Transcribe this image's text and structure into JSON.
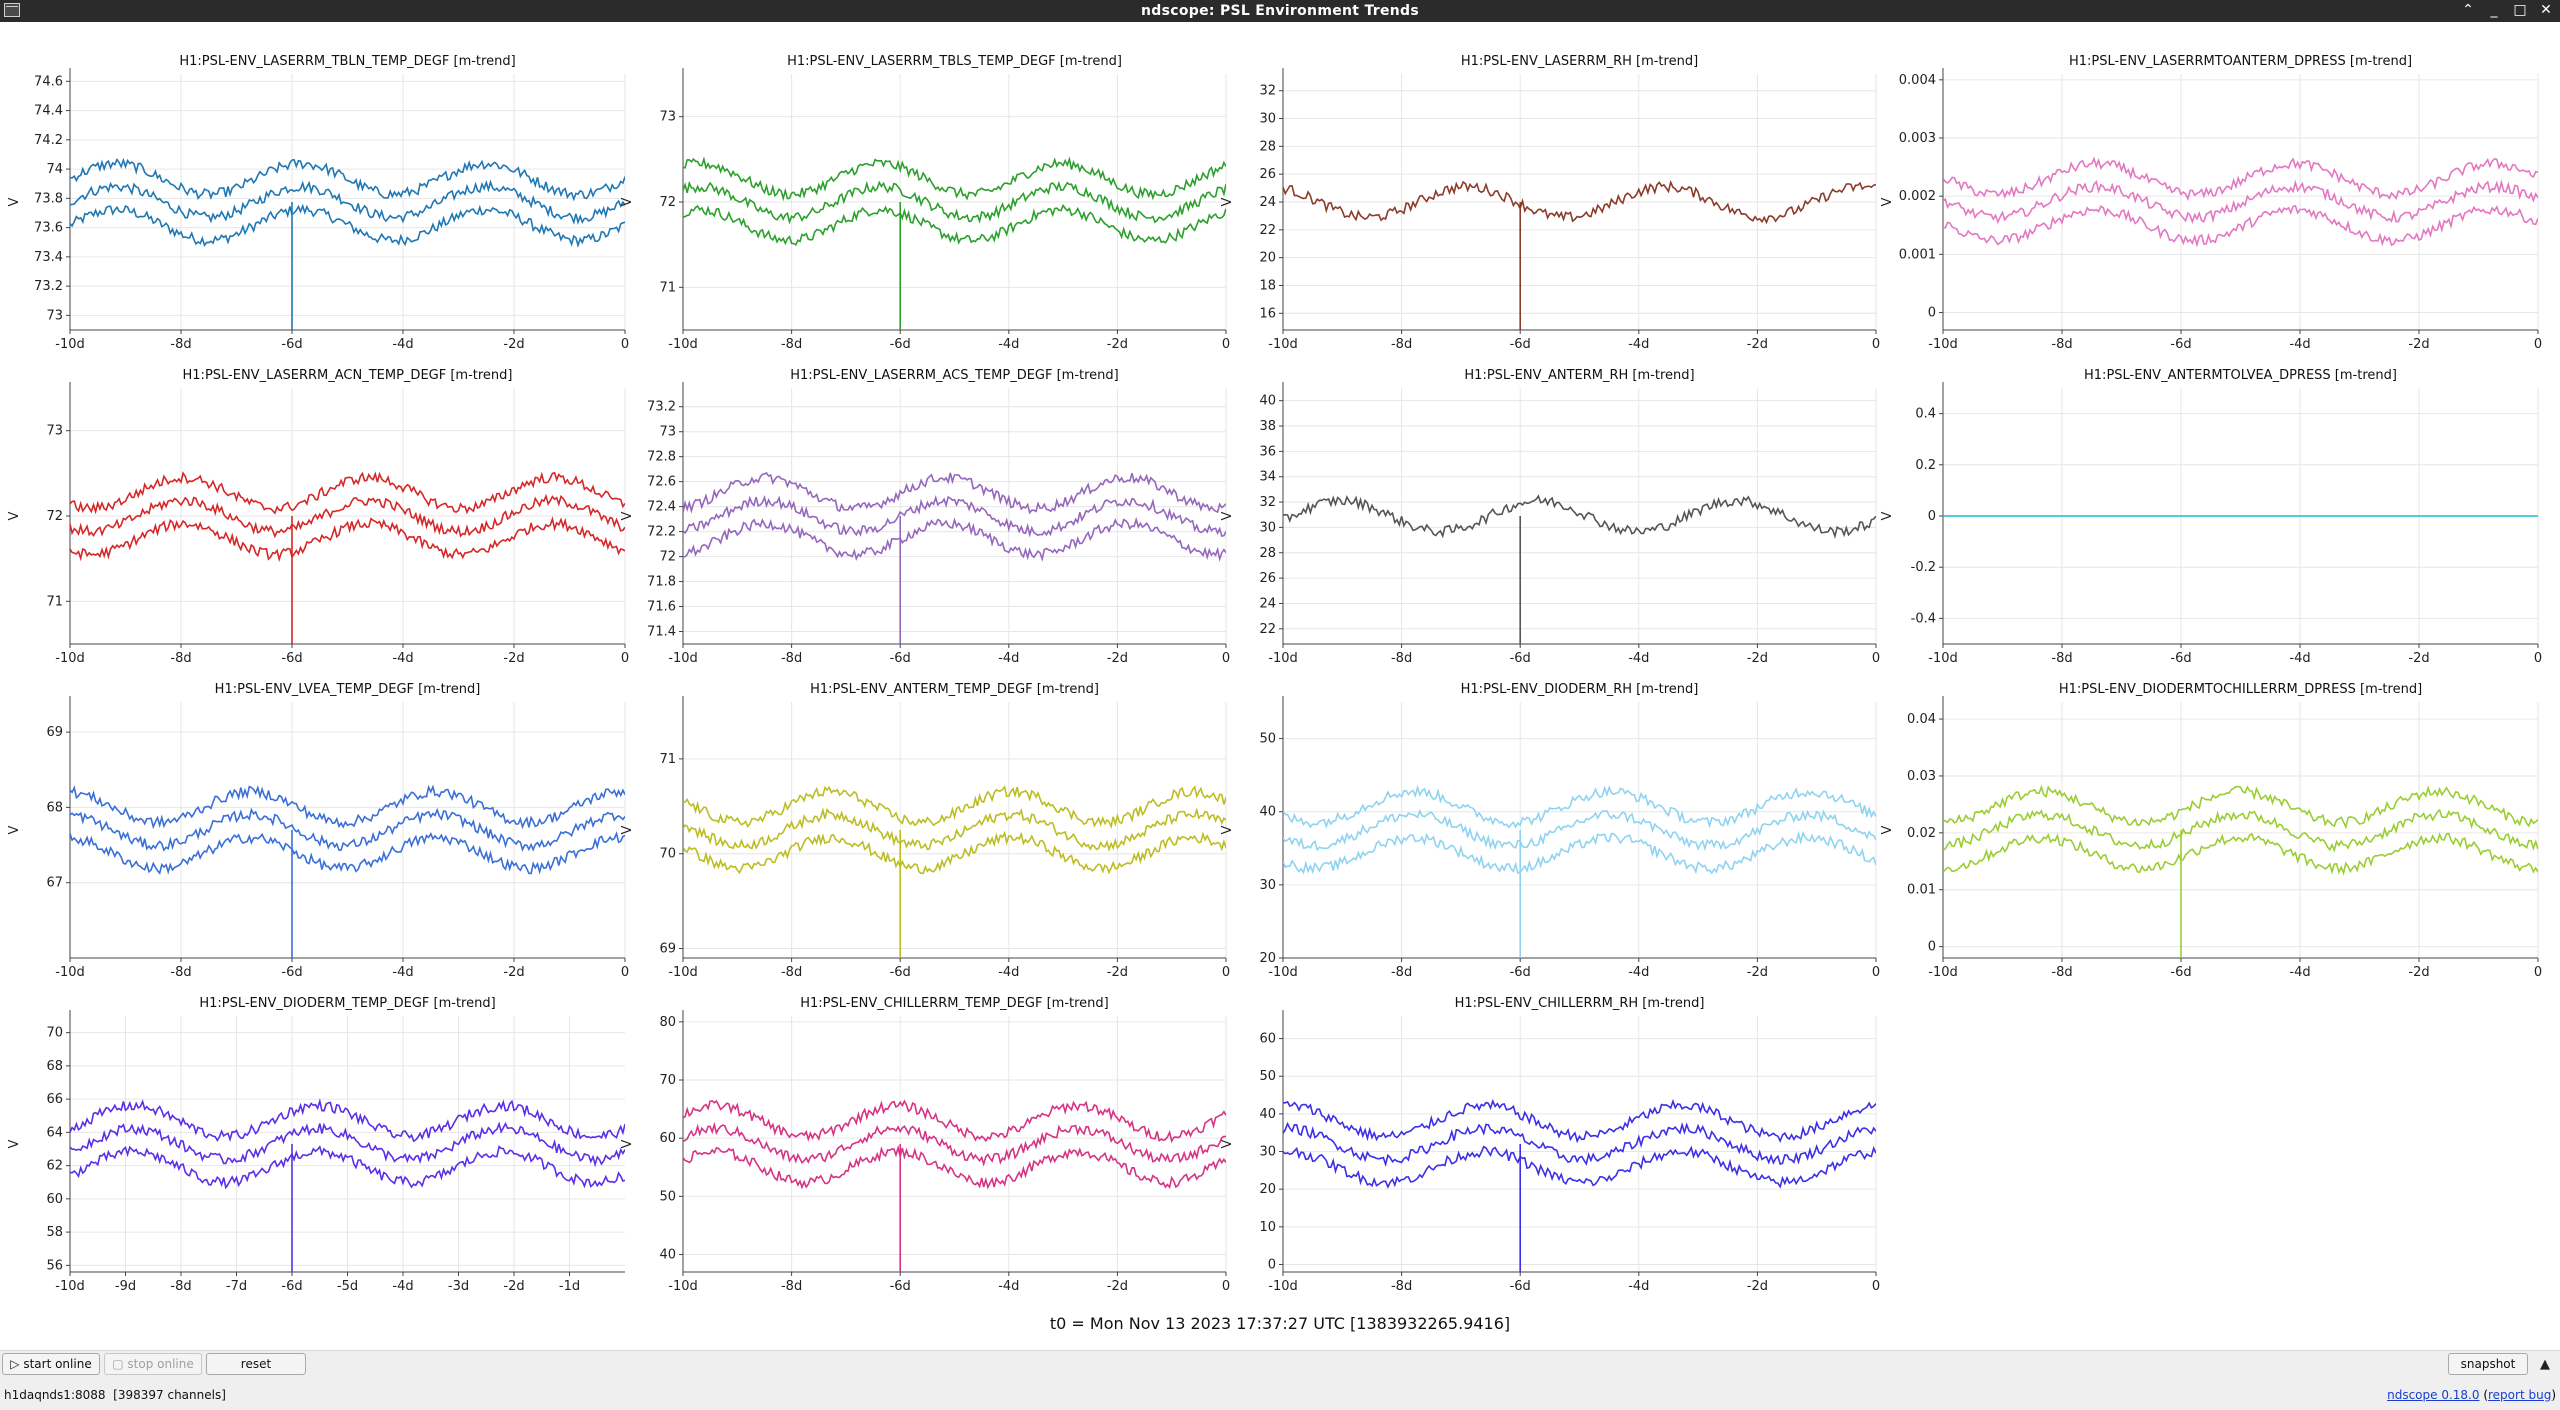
{
  "window": {
    "title": "ndscope: PSL Environment Trends",
    "controls": [
      "⌃",
      "_",
      "□",
      "✕"
    ]
  },
  "time_ticks": [
    "-10d",
    "-8d",
    "-6d",
    "-4d",
    "-2d",
    "0"
  ],
  "time_ticks_dense": [
    "-10d",
    "-9d",
    "-8d",
    "-7d",
    "-6d",
    "-5d",
    "-4d",
    "-3d",
    "-2d",
    "-1d"
  ],
  "plots": [
    {
      "title": "H1:PSL-ENV_LASERRM_TBLN_TEMP_DEGF [m-trend]",
      "ylabel": "V",
      "yticks": [
        "73",
        "73.2",
        "73.4",
        "73.6",
        "73.8",
        "74",
        "74.2",
        "74.4",
        "74.6"
      ],
      "ylim": [
        72.9,
        74.65
      ],
      "color": "#1f77b4"
    },
    {
      "title": "H1:PSL-ENV_LASERRM_TBLS_TEMP_DEGF [m-trend]",
      "ylabel": "V",
      "yticks": [
        "71",
        "72",
        "73"
      ],
      "ylim": [
        70.5,
        73.5
      ],
      "color": "#2ca02c"
    },
    {
      "title": "H1:PSL-ENV_LASERRM_RH [m-trend]",
      "ylabel": "V",
      "yticks": [
        "16",
        "18",
        "20",
        "22",
        "24",
        "26",
        "28",
        "30",
        "32"
      ],
      "ylim": [
        14.8,
        33.2
      ],
      "color": "#8c3b2a"
    },
    {
      "title": "H1:PSL-ENV_LASERRMTOANTERM_DPRESS [m-trend]",
      "ylabel": "V",
      "yticks": [
        "0",
        "0.001",
        "0.002",
        "0.003",
        "0.004"
      ],
      "ylim": [
        -0.0003,
        0.0041
      ],
      "color": "#e377c2"
    },
    {
      "title": "H1:PSL-ENV_LASERRM_ACN_TEMP_DEGF [m-trend]",
      "ylabel": "V",
      "yticks": [
        "71",
        "72",
        "73"
      ],
      "ylim": [
        70.5,
        73.5
      ],
      "color": "#d62728"
    },
    {
      "title": "H1:PSL-ENV_LASERRM_ACS_TEMP_DEGF [m-trend]",
      "ylabel": "V",
      "yticks": [
        "71.4",
        "71.6",
        "71.8",
        "72",
        "72.2",
        "72.4",
        "72.6",
        "72.8",
        "73",
        "73.2"
      ],
      "ylim": [
        71.3,
        73.35
      ],
      "color": "#9467bd"
    },
    {
      "title": "H1:PSL-ENV_ANTERM_RH [m-trend]",
      "ylabel": "V",
      "yticks": [
        "22",
        "24",
        "26",
        "28",
        "30",
        "32",
        "34",
        "36",
        "38",
        "40"
      ],
      "ylim": [
        20.8,
        41
      ],
      "color": "#555555"
    },
    {
      "title": "H1:PSL-ENV_ANTERMTOLVEA_DPRESS [m-trend]",
      "ylabel": "V",
      "yticks": [
        "-0.4",
        "-0.2",
        "0",
        "0.2",
        "0.4"
      ],
      "ylim": [
        -0.5,
        0.5
      ],
      "color": "#17becf"
    },
    {
      "title": "H1:PSL-ENV_LVEA_TEMP_DEGF [m-trend]",
      "ylabel": "V",
      "yticks": [
        "67",
        "68",
        "69"
      ],
      "ylim": [
        66,
        69.4
      ],
      "color": "#3a6fd8"
    },
    {
      "title": "H1:PSL-ENV_ANTERM_TEMP_DEGF [m-trend]",
      "ylabel": "V",
      "yticks": [
        "69",
        "70",
        "71"
      ],
      "ylim": [
        68.9,
        71.6
      ],
      "color": "#bcbd22"
    },
    {
      "title": "H1:PSL-ENV_DIODERM_RH [m-trend]",
      "ylabel": "V",
      "yticks": [
        "20",
        "30",
        "40",
        "50"
      ],
      "ylim": [
        20,
        55
      ],
      "color": "#8fd3f0"
    },
    {
      "title": "H1:PSL-ENV_DIODERMTOCHILLERRM_DPRESS [m-trend]",
      "ylabel": "V",
      "yticks": [
        "0",
        "0.01",
        "0.02",
        "0.03",
        "0.04"
      ],
      "ylim": [
        -0.002,
        0.043
      ],
      "color": "#9acd32"
    },
    {
      "title": "H1:PSL-ENV_DIODERM_TEMP_DEGF [m-trend]",
      "ylabel": "V",
      "yticks": [
        "56",
        "58",
        "60",
        "62",
        "64",
        "66",
        "68",
        "70"
      ],
      "ylim": [
        55.6,
        71
      ],
      "color": "#5b2ee8",
      "dense_ticks": true
    },
    {
      "title": "H1:PSL-ENV_CHILLERRM_TEMP_DEGF [m-trend]",
      "ylabel": "V",
      "yticks": [
        "40",
        "50",
        "60",
        "70",
        "80"
      ],
      "ylim": [
        37,
        81
      ],
      "color": "#d63384"
    },
    {
      "title": "H1:PSL-ENV_CHILLERRM_RH [m-trend]",
      "ylabel": "V",
      "yticks": [
        "0",
        "10",
        "20",
        "30",
        "40",
        "50",
        "60"
      ],
      "ylim": [
        -2,
        66
      ],
      "color": "#3d2ee8"
    }
  ],
  "t0_label": "t0 = Mon Nov 13 2023 17:37:27 UTC [1383932265.9416]",
  "buttons": {
    "start_online": "start online",
    "stop_online": "stop online",
    "reset": "reset",
    "snapshot": "snapshot"
  },
  "status": {
    "server": "h1daqnds1:8088",
    "channels": "[398397 channels]",
    "version": "ndscope 0.18.0",
    "report_bug": "report bug"
  }
}
